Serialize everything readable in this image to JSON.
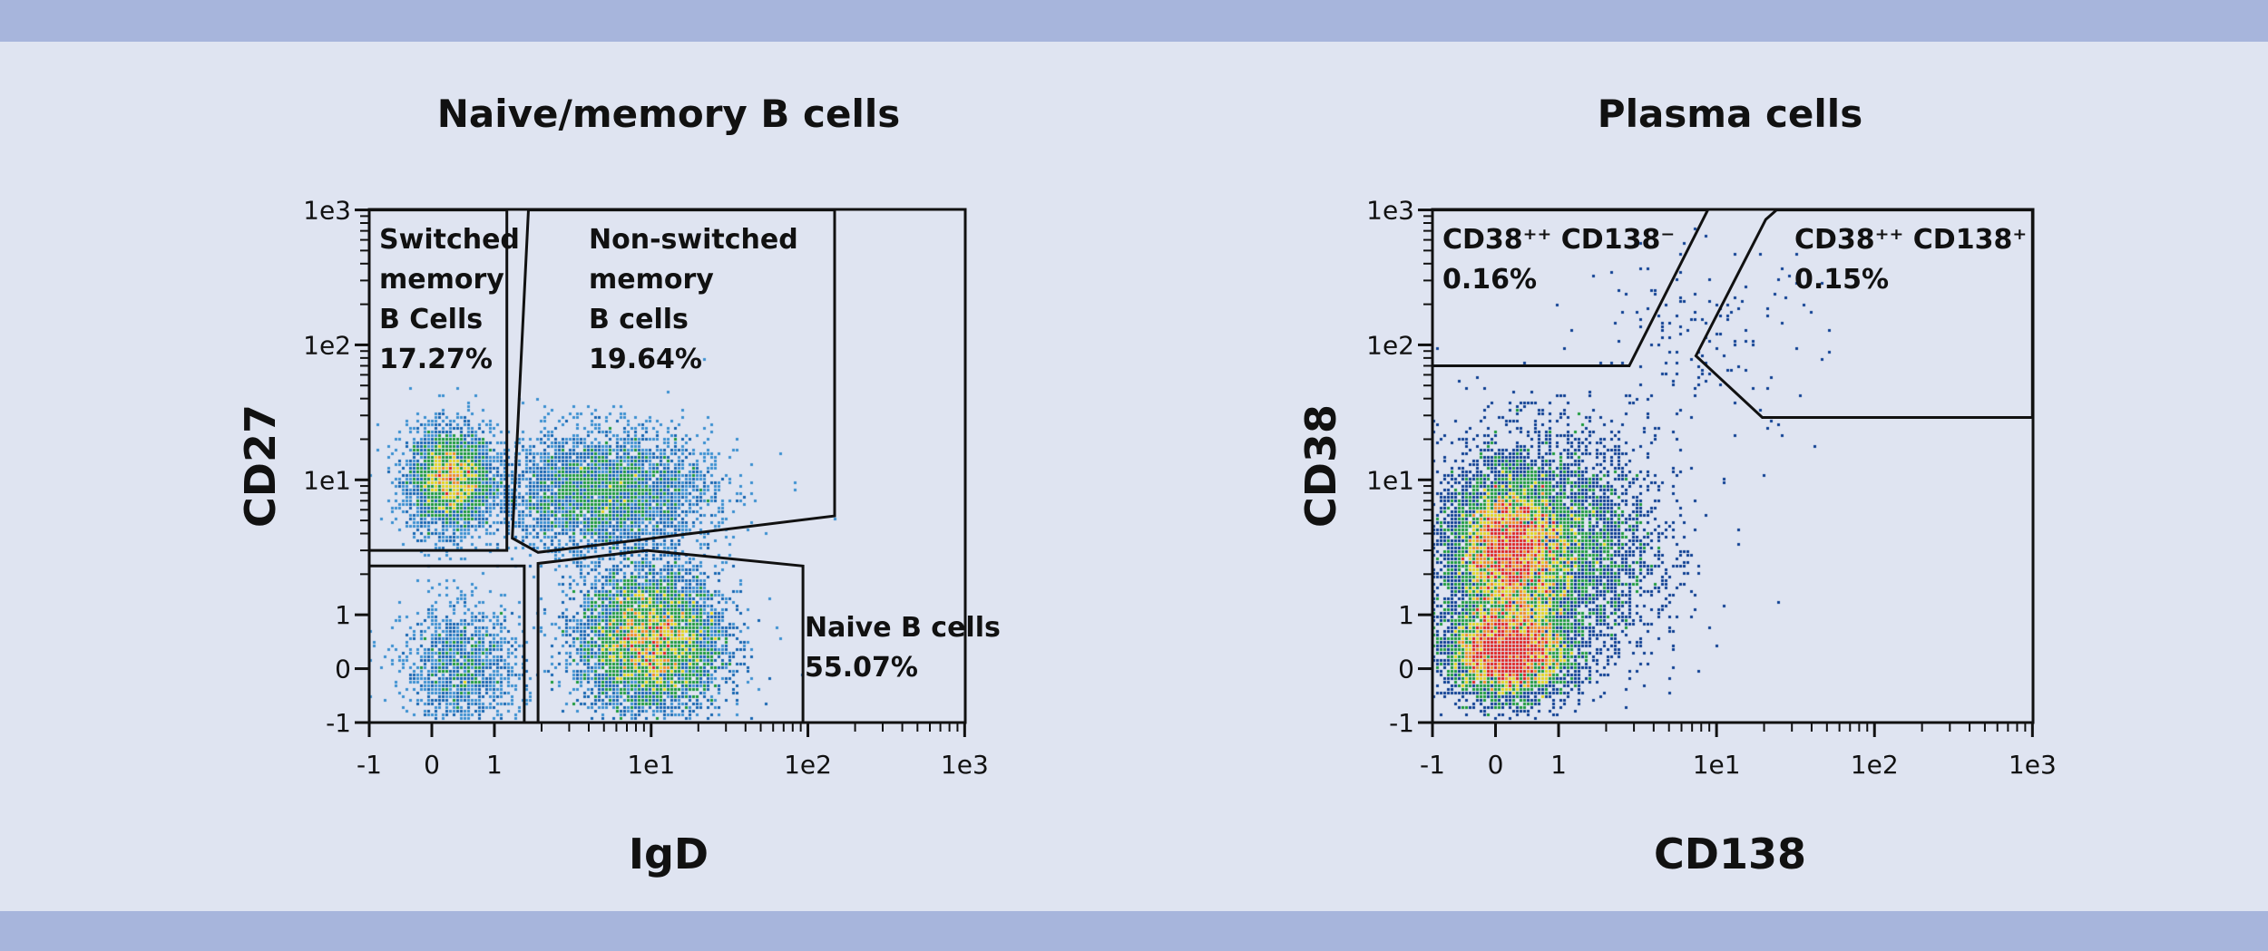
{
  "colors": {
    "background": "#dfe4f1",
    "band": "#a7b5dc",
    "gate": "#111111"
  },
  "chart_data": [
    {
      "type": "scatter",
      "subtype": "flow-cytometry-density",
      "title": "Naive/memory B cells",
      "xlabel": "IgD",
      "ylabel": "CD27",
      "scale": "logicle",
      "xlim": [
        -1,
        1000
      ],
      "ylim": [
        -1,
        1000
      ],
      "xticks": [
        "-1",
        "0",
        "1",
        "1e1",
        "1e2",
        "1e3"
      ],
      "yticks": [
        "-1",
        "0",
        "1",
        "1e1",
        "1e2",
        "1e3"
      ],
      "tick_values": [
        -1,
        0,
        1,
        10,
        100,
        1000
      ],
      "density_colors": [
        "#3a8fd0",
        "#1565b0",
        "#1a9a3a",
        "#e3d51c",
        "#f08a1c",
        "#e0201c"
      ],
      "density_clusters": [
        {
          "x": 0.3,
          "y": 10,
          "n": 3200
        },
        {
          "x": 5,
          "y": 8,
          "n": 3800
        },
        {
          "x": 10,
          "y": 0.5,
          "n": 7500
        },
        {
          "x": 0.5,
          "y": 0,
          "n": 1300
        }
      ],
      "gates": [
        {
          "name": "switched-memory",
          "lines": [
            "Switched",
            "memory",
            "B Cells",
            "17.27%"
          ],
          "polygon": [
            [
              -1,
              3
            ],
            [
              1.2,
              3
            ],
            [
              1.2,
              1000
            ],
            [
              -1,
              1000
            ]
          ]
        },
        {
          "name": "non-switched-memory",
          "lines": [
            "Non-switched",
            "memory",
            "B cells",
            "19.64%"
          ],
          "polygon": [
            [
              1.65,
              1000
            ],
            [
              148,
              1000
            ],
            [
              148,
              5.4
            ],
            [
              1.9,
              2.9
            ],
            [
              1.3,
              3.7
            ]
          ]
        },
        {
          "name": "naive",
          "lines": [
            "Naive B cells",
            "55.07%"
          ],
          "polygon": [
            [
              1.9,
              -1
            ],
            [
              1.9,
              2.4
            ],
            [
              9.4,
              3
            ],
            [
              93,
              2.3
            ],
            [
              93,
              -1
            ]
          ]
        },
        {
          "name": "double-negative",
          "lines": [],
          "polygon": [
            [
              -1,
              -1
            ],
            [
              -1,
              2.3
            ],
            [
              1.55,
              2.3
            ],
            [
              1.55,
              -1
            ]
          ]
        }
      ]
    },
    {
      "type": "scatter",
      "subtype": "flow-cytometry-density",
      "title": "Plasma cells",
      "xlabel": "CD138",
      "ylabel": "CD38",
      "scale": "logicle",
      "xlim": [
        -1,
        1000
      ],
      "ylim": [
        -1,
        1000
      ],
      "xticks": [
        "-1",
        "0",
        "1",
        "1e1",
        "1e2",
        "1e3"
      ],
      "yticks": [
        "-1",
        "0",
        "1",
        "1e1",
        "1e2",
        "1e3"
      ],
      "tick_values": [
        -1,
        0,
        1,
        10,
        100,
        1000
      ],
      "density_colors": [
        "#0b3d91",
        "#0b3d91",
        "#1a9a3a",
        "#e3d51c",
        "#f08a1c",
        "#e0201c"
      ],
      "density_clusters": [
        {
          "x": 0.2,
          "y": 0.3,
          "n": 9000
        },
        {
          "x": 0.2,
          "y": 3,
          "n": 8000
        },
        {
          "x": 0.8,
          "y": 3,
          "n": 8000
        },
        {
          "x": 8,
          "y": 100,
          "n": 160
        }
      ],
      "gates": [
        {
          "name": "cd38hi-cd138neg",
          "lines": [
            "CD38⁺⁺ CD138⁻",
            "0.16%"
          ],
          "polygon": [
            [
              -1,
              70
            ],
            [
              2.8,
              70
            ],
            [
              8.8,
              1000
            ],
            [
              -1,
              1000
            ]
          ]
        },
        {
          "name": "cd38hi-cd138pos",
          "lines": [
            "CD38⁺⁺ CD138⁺",
            "0.15%"
          ],
          "polygon": [
            [
              24,
              1000
            ],
            [
              20.5,
              850
            ],
            [
              7.4,
              83
            ],
            [
              19.5,
              29
            ],
            [
              1000,
              29
            ],
            [
              1000,
              1000
            ]
          ]
        }
      ]
    }
  ]
}
